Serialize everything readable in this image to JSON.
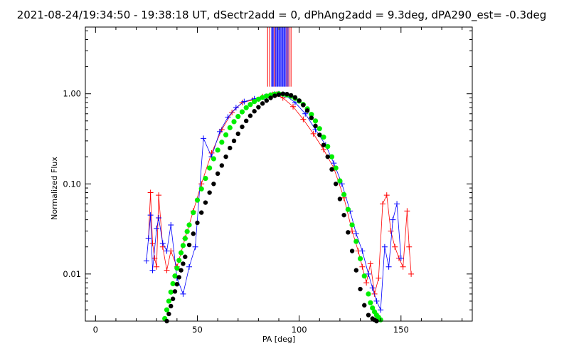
{
  "title": "2021-08-24/19:34:50 - 19:38:18 UT, dSectr2add = 0, dPhAng2add = 9.3deg, dPA290_est= -0.3deg",
  "chart_data": {
    "type": "scatter",
    "xlabel": "PA [deg]",
    "ylabel": "Normalized Flux",
    "xlim": [
      -5,
      185
    ],
    "ylim": [
      0.003,
      5.5
    ],
    "yscale": "log",
    "x_ticks": [
      0,
      50,
      100,
      150
    ],
    "y_ticks": [
      0.01,
      0.1,
      1.0
    ],
    "x_tick_labels": [
      "0",
      "50",
      "100",
      "150"
    ],
    "y_tick_labels": [
      "0.01",
      "0.10",
      "1.00"
    ],
    "grid": false,
    "legend": "none",
    "colors": {
      "sector_a": "#ff0000",
      "sector_b": "#0000ff",
      "model_fit": "#00ee00",
      "reference": "#000000"
    },
    "series": [
      {
        "color": "sector_a",
        "marker": "plus",
        "x": [
          26,
          27,
          28,
          29,
          30,
          31,
          33,
          35,
          37,
          40,
          44,
          48,
          52,
          57,
          62,
          67,
          72,
          77,
          82,
          87,
          89,
          92,
          97,
          102,
          107,
          112,
          117,
          122,
          126,
          129,
          131,
          133,
          135,
          137,
          139,
          141,
          143,
          145,
          147,
          149,
          151,
          153,
          154,
          155
        ],
        "y": [
          0.025,
          0.08,
          0.022,
          0.015,
          0.012,
          0.075,
          0.02,
          0.011,
          0.018,
          0.012,
          0.025,
          0.05,
          0.1,
          0.22,
          0.4,
          0.62,
          0.8,
          0.85,
          0.93,
          0.98,
          0.99,
          0.9,
          0.72,
          0.52,
          0.36,
          0.24,
          0.15,
          0.07,
          0.03,
          0.018,
          0.012,
          0.008,
          0.013,
          0.006,
          0.009,
          0.06,
          0.075,
          0.03,
          0.02,
          0.015,
          0.012,
          0.05,
          0.02,
          0.01
        ]
      },
      {
        "color": "sector_b",
        "marker": "plus",
        "x": [
          25,
          26,
          27,
          28,
          30,
          31,
          33,
          35,
          37,
          40,
          43,
          46,
          49,
          53,
          57,
          61,
          65,
          69,
          73,
          78,
          83,
          88,
          90,
          93,
          98,
          103,
          108,
          113,
          117,
          121,
          125,
          128,
          131,
          134,
          136,
          138,
          140,
          142,
          144,
          146,
          148,
          150
        ],
        "y": [
          0.014,
          0.025,
          0.045,
          0.011,
          0.032,
          0.042,
          0.022,
          0.018,
          0.035,
          0.009,
          0.006,
          0.012,
          0.02,
          0.32,
          0.2,
          0.38,
          0.55,
          0.7,
          0.82,
          0.88,
          0.92,
          0.99,
          1.0,
          0.97,
          0.8,
          0.6,
          0.4,
          0.27,
          0.17,
          0.1,
          0.05,
          0.028,
          0.018,
          0.01,
          0.007,
          0.005,
          0.004,
          0.02,
          0.012,
          0.04,
          0.06,
          0.015
        ]
      },
      {
        "color": "model_fit",
        "marker": "circle",
        "x": [
          34,
          35,
          36,
          37,
          38,
          39,
          40,
          41,
          42,
          43,
          44,
          45,
          46,
          48,
          50,
          52,
          54,
          56,
          58,
          60,
          62,
          64,
          66,
          68,
          70,
          72,
          74,
          76,
          78,
          80,
          82,
          84,
          86,
          88,
          90,
          92,
          94,
          96,
          98,
          100,
          102,
          104,
          106,
          108,
          110,
          112,
          114,
          116,
          118,
          120,
          122,
          124,
          126,
          128,
          130,
          132,
          134,
          135,
          136,
          137,
          138,
          139,
          140
        ],
        "y": [
          0.0032,
          0.004,
          0.005,
          0.0063,
          0.0078,
          0.0095,
          0.0116,
          0.0142,
          0.0172,
          0.0207,
          0.0248,
          0.0296,
          0.035,
          0.048,
          0.066,
          0.088,
          0.115,
          0.15,
          0.19,
          0.237,
          0.29,
          0.35,
          0.42,
          0.49,
          0.56,
          0.63,
          0.7,
          0.76,
          0.82,
          0.87,
          0.91,
          0.945,
          0.97,
          0.99,
          1.0,
          0.99,
          0.97,
          0.94,
          0.89,
          0.83,
          0.76,
          0.68,
          0.59,
          0.5,
          0.41,
          0.33,
          0.26,
          0.2,
          0.15,
          0.108,
          0.076,
          0.052,
          0.035,
          0.023,
          0.0148,
          0.0095,
          0.006,
          0.0048,
          0.0042,
          0.0038,
          0.0035,
          0.0033,
          0.0031
        ]
      },
      {
        "color": "reference",
        "marker": "circle",
        "x": [
          35,
          36,
          37,
          38,
          39,
          40,
          41,
          42,
          43,
          44,
          46,
          48,
          50,
          52,
          54,
          56,
          58,
          60,
          62,
          64,
          66,
          68,
          70,
          72,
          74,
          76,
          78,
          80,
          82,
          84,
          86,
          88,
          90,
          92,
          94,
          96,
          98,
          100,
          102,
          104,
          106,
          108,
          110,
          112,
          114,
          116,
          118,
          120,
          122,
          124,
          126,
          128,
          130,
          132,
          134,
          136,
          137,
          138
        ],
        "y": [
          0.003,
          0.0036,
          0.0044,
          0.0053,
          0.0064,
          0.0077,
          0.0092,
          0.011,
          0.013,
          0.0155,
          0.021,
          0.028,
          0.037,
          0.048,
          0.062,
          0.08,
          0.1,
          0.13,
          0.16,
          0.2,
          0.25,
          0.3,
          0.36,
          0.43,
          0.5,
          0.57,
          0.64,
          0.71,
          0.78,
          0.84,
          0.9,
          0.95,
          0.98,
          1.0,
          0.99,
          0.96,
          0.91,
          0.84,
          0.75,
          0.65,
          0.54,
          0.44,
          0.35,
          0.27,
          0.2,
          0.145,
          0.1,
          0.068,
          0.045,
          0.029,
          0.018,
          0.011,
          0.0068,
          0.0045,
          0.0035,
          0.0032,
          0.0031,
          0.003
        ]
      }
    ],
    "vertical_lines": {
      "x": [
        84.5,
        85.5,
        86.5,
        87,
        87.5,
        88,
        88.5,
        89,
        89.5,
        90,
        90.5,
        91,
        91.5,
        92,
        92.5,
        93,
        93.5,
        94,
        94.5,
        95,
        96
      ],
      "colors": [
        "sector_a",
        "sector_a",
        "sector_b",
        "sector_b",
        "sector_b",
        "sector_a",
        "sector_b",
        "sector_b",
        "sector_b",
        "sector_b",
        "sector_b",
        "sector_b",
        "sector_b",
        "sector_b",
        "sector_b",
        "sector_b",
        "sector_b",
        "sector_a",
        "sector_b",
        "sector_a",
        "sector_a"
      ],
      "y_from": 1.2
    }
  }
}
